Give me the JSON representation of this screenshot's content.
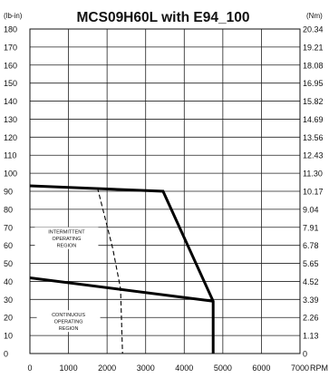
{
  "chart_data": {
    "type": "line",
    "title": "MCS09H60L with E94_100",
    "left_unit": "(lb-in)",
    "right_unit": "(Nm)",
    "x_unit": "RPM",
    "xlim": [
      0,
      7000
    ],
    "ylim": [
      0,
      180
    ],
    "x_ticks": [
      0,
      1000,
      2000,
      3000,
      4000,
      5000,
      6000,
      7000
    ],
    "y_ticks": [
      0,
      10,
      20,
      30,
      40,
      50,
      60,
      70,
      80,
      90,
      100,
      110,
      120,
      130,
      140,
      150,
      160,
      170,
      180
    ],
    "y_right_ticks": [
      "0",
      "1.13",
      "2.26",
      "3.39",
      "4.52",
      "5.65",
      "6.78",
      "7.91",
      "9.04",
      "10.17",
      "11.30",
      "12.43",
      "13.56",
      "14.69",
      "15.82",
      "16.95",
      "18.08",
      "19.21",
      "20.34"
    ],
    "grid": true,
    "series": [
      {
        "style": "solid-thick",
        "points": [
          [
            0,
            93
          ],
          [
            3450,
            90
          ],
          [
            4750,
            29
          ],
          [
            4750,
            0
          ]
        ]
      },
      {
        "style": "solid-thick",
        "points": [
          [
            0,
            42
          ],
          [
            4750,
            29
          ]
        ]
      },
      {
        "style": "dashed",
        "points": [
          [
            1750,
            92
          ],
          [
            2150,
            58
          ],
          [
            2350,
            36
          ],
          [
            2400,
            0
          ]
        ]
      }
    ],
    "annotations": [
      {
        "lines": [
          "INTERMITTENT",
          "OPERATING",
          "REGION"
        ],
        "x": 950,
        "y": 64
      },
      {
        "lines": [
          "CONTINUOUS",
          "OPERATING",
          "REGION"
        ],
        "x": 1000,
        "y": 18
      }
    ]
  }
}
